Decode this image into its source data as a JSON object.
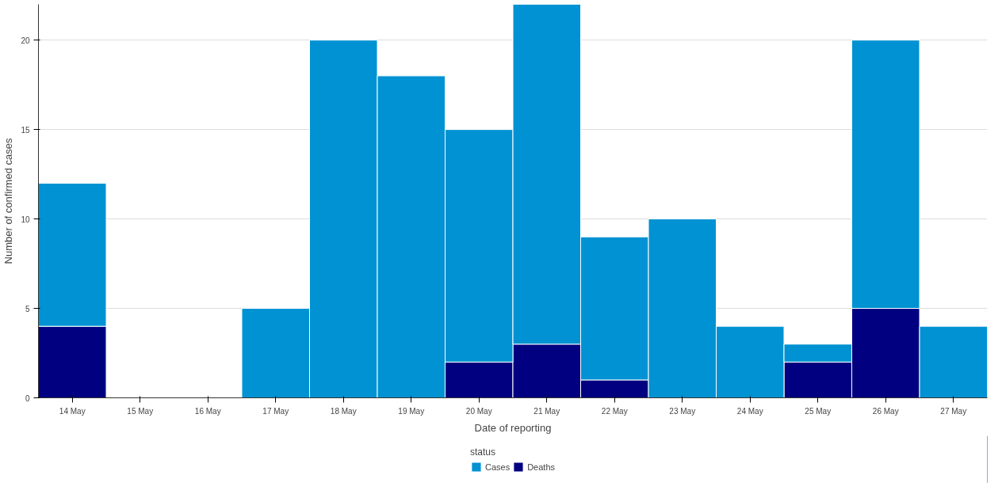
{
  "chart_data": {
    "type": "bar",
    "stacked": true,
    "xlabel": "Date of reporting",
    "ylabel": "Number of confirmed cases",
    "legend_title": "status",
    "legend": "bottom",
    "grid": "y",
    "categories": [
      "14 May",
      "15 May",
      "16 May",
      "17 May",
      "18 May",
      "19 May",
      "20 May",
      "21 May",
      "22 May",
      "23 May",
      "24 May",
      "25 May",
      "26 May",
      "27 May"
    ],
    "series": [
      {
        "name": "Deaths",
        "color": "#000080",
        "values": [
          4,
          0,
          0,
          0,
          0,
          0,
          2,
          3,
          1,
          0,
          0,
          2,
          5,
          0
        ]
      },
      {
        "name": "Cases",
        "color": "#0092d2",
        "values": [
          8,
          0,
          0,
          5,
          20,
          18,
          13,
          19,
          8,
          10,
          4,
          1,
          15,
          4
        ]
      }
    ],
    "ylim": [
      0,
      22
    ],
    "yticks": [
      0,
      5,
      10,
      15,
      20
    ]
  }
}
